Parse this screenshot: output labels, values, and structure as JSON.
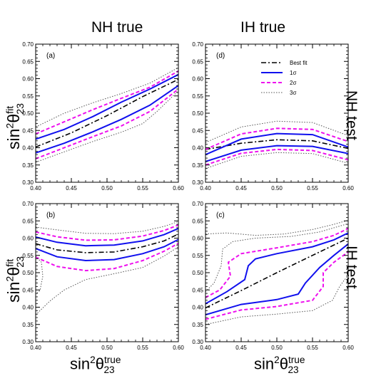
{
  "headers": {
    "col_left": "NH true",
    "col_right": "IH true",
    "row_top": "NH test",
    "row_bottom": "IH test"
  },
  "axis_text": {
    "y_main": "sin",
    "y_sup": "2",
    "y_theta": "θ",
    "y_sub": "23",
    "y_supfit": "fit",
    "x_main": "sin",
    "x_sup": "2",
    "x_theta": "θ",
    "x_sub": "23",
    "x_suptrue": "true"
  },
  "styles": {
    "best": {
      "color": "#000000",
      "dash": "7,3,2,3",
      "width": 1.6
    },
    "sigma1": {
      "color": "#1010ee",
      "dash": "",
      "width": 2.0
    },
    "sigma2": {
      "color": "#ee10ee",
      "dash": "5,3",
      "width": 2.0
    },
    "sigma3": {
      "color": "#555555",
      "dash": "1.5,2",
      "width": 1.0
    }
  },
  "chart_data": [
    {
      "type": "line",
      "label": "(a)",
      "xlim": [
        0.4,
        0.6
      ],
      "ylim": [
        0.3,
        0.7
      ],
      "xticks": [
        "0.40",
        "0.45",
        "0.50",
        "0.55",
        "0.60"
      ],
      "yticks": [
        "0.30",
        "0.35",
        "0.40",
        "0.45",
        "0.50",
        "0.55",
        "0.60",
        "0.65",
        "0.70"
      ],
      "series": [
        {
          "style": "best",
          "points": [
            [
              0.4,
              0.402
            ],
            [
              0.45,
              0.443
            ],
            [
              0.5,
              0.493
            ],
            [
              0.55,
              0.548
            ],
            [
              0.6,
              0.598
            ]
          ]
        },
        {
          "style": "sigma1",
          "points": [
            [
              0.4,
              0.425
            ],
            [
              0.44,
              0.453
            ],
            [
              0.48,
              0.49
            ],
            [
              0.52,
              0.532
            ],
            [
              0.56,
              0.57
            ],
            [
              0.6,
              0.612
            ]
          ]
        },
        {
          "style": "sigma1",
          "points": [
            [
              0.4,
              0.385
            ],
            [
              0.44,
              0.413
            ],
            [
              0.48,
              0.446
            ],
            [
              0.52,
              0.482
            ],
            [
              0.56,
              0.523
            ],
            [
              0.6,
              0.58
            ]
          ]
        },
        {
          "style": "sigma2",
          "points": [
            [
              0.4,
              0.44
            ],
            [
              0.44,
              0.475
            ],
            [
              0.48,
              0.51
            ],
            [
              0.52,
              0.543
            ],
            [
              0.56,
              0.575
            ],
            [
              0.6,
              0.622
            ]
          ]
        },
        {
          "style": "sigma2",
          "points": [
            [
              0.4,
              0.368
            ],
            [
              0.44,
              0.4
            ],
            [
              0.48,
              0.432
            ],
            [
              0.52,
              0.463
            ],
            [
              0.56,
              0.505
            ],
            [
              0.6,
              0.57
            ]
          ]
        },
        {
          "style": "sigma3",
          "points": [
            [
              0.4,
              0.46
            ],
            [
              0.44,
              0.5
            ],
            [
              0.48,
              0.53
            ],
            [
              0.52,
              0.557
            ],
            [
              0.56,
              0.587
            ],
            [
              0.6,
              0.632
            ]
          ]
        },
        {
          "style": "sigma3",
          "points": [
            [
              0.4,
              0.358
            ],
            [
              0.44,
              0.388
            ],
            [
              0.48,
              0.418
            ],
            [
              0.52,
              0.445
            ],
            [
              0.55,
              0.47
            ],
            [
              0.57,
              0.505
            ],
            [
              0.6,
              0.565
            ]
          ]
        }
      ]
    },
    {
      "type": "line",
      "label": "(d)",
      "xlim": [
        0.4,
        0.6
      ],
      "ylim": [
        0.3,
        0.7
      ],
      "xticks": [
        "0.40",
        "0.45",
        "0.50",
        "0.55",
        "0.60"
      ],
      "yticks": [
        "0.30",
        "0.35",
        "0.40",
        "0.45",
        "0.50",
        "0.55",
        "0.60",
        "0.65",
        "0.70"
      ],
      "legend": {
        "placement": "top-center",
        "entries": [
          {
            "style": "best",
            "label": "Best fit"
          },
          {
            "style": "sigma1",
            "label": "1σ"
          },
          {
            "style": "sigma2",
            "label": "2σ"
          },
          {
            "style": "sigma3",
            "label": "3σ"
          }
        ]
      },
      "series": [
        {
          "style": "best",
          "points": [
            [
              0.4,
              0.395
            ],
            [
              0.45,
              0.413
            ],
            [
              0.5,
              0.423
            ],
            [
              0.55,
              0.42
            ],
            [
              0.6,
              0.398
            ]
          ]
        },
        {
          "style": "sigma1",
          "points": [
            [
              0.4,
              0.38
            ],
            [
              0.45,
              0.425
            ],
            [
              0.5,
              0.441
            ],
            [
              0.55,
              0.438
            ],
            [
              0.6,
              0.402
            ]
          ]
        },
        {
          "style": "sigma1",
          "points": [
            [
              0.4,
              0.36
            ],
            [
              0.45,
              0.393
            ],
            [
              0.5,
              0.406
            ],
            [
              0.55,
              0.404
            ],
            [
              0.6,
              0.383
            ]
          ]
        },
        {
          "style": "sigma2",
          "points": [
            [
              0.4,
              0.395
            ],
            [
              0.45,
              0.44
            ],
            [
              0.5,
              0.456
            ],
            [
              0.55,
              0.453
            ],
            [
              0.6,
              0.418
            ]
          ]
        },
        {
          "style": "sigma2",
          "points": [
            [
              0.4,
              0.35
            ],
            [
              0.45,
              0.384
            ],
            [
              0.5,
              0.395
            ],
            [
              0.55,
              0.392
            ],
            [
              0.6,
              0.365
            ]
          ]
        },
        {
          "style": "sigma3",
          "points": [
            [
              0.4,
              0.415
            ],
            [
              0.45,
              0.46
            ],
            [
              0.5,
              0.477
            ],
            [
              0.55,
              0.473
            ],
            [
              0.6,
              0.435
            ]
          ]
        },
        {
          "style": "sigma3",
          "points": [
            [
              0.4,
              0.34
            ],
            [
              0.45,
              0.375
            ],
            [
              0.5,
              0.386
            ],
            [
              0.55,
              0.383
            ],
            [
              0.6,
              0.355
            ]
          ]
        }
      ]
    },
    {
      "type": "line",
      "label": "(b)",
      "xlim": [
        0.4,
        0.6
      ],
      "ylim": [
        0.3,
        0.7
      ],
      "xticks": [
        "0.40",
        "0.45",
        "0.50",
        "0.55",
        "0.60"
      ],
      "yticks": [
        "0.30",
        "0.35",
        "0.40",
        "0.45",
        "0.50",
        "0.55",
        "0.60",
        "0.65",
        "0.70"
      ],
      "series": [
        {
          "style": "best",
          "points": [
            [
              0.4,
              0.584
            ],
            [
              0.43,
              0.566
            ],
            [
              0.47,
              0.558
            ],
            [
              0.51,
              0.56
            ],
            [
              0.55,
              0.575
            ],
            [
              0.58,
              0.592
            ],
            [
              0.6,
              0.612
            ]
          ]
        },
        {
          "style": "sigma1",
          "points": [
            [
              0.4,
              0.603
            ],
            [
              0.43,
              0.588
            ],
            [
              0.47,
              0.578
            ],
            [
              0.51,
              0.58
            ],
            [
              0.55,
              0.592
            ],
            [
              0.58,
              0.61
            ],
            [
              0.6,
              0.628
            ]
          ]
        },
        {
          "style": "sigma1",
          "points": [
            [
              0.4,
              0.57
            ],
            [
              0.43,
              0.546
            ],
            [
              0.47,
              0.535
            ],
            [
              0.51,
              0.538
            ],
            [
              0.55,
              0.555
            ],
            [
              0.58,
              0.575
            ],
            [
              0.6,
              0.596
            ]
          ]
        },
        {
          "style": "sigma2",
          "points": [
            [
              0.4,
              0.618
            ],
            [
              0.43,
              0.604
            ],
            [
              0.47,
              0.594
            ],
            [
              0.51,
              0.595
            ],
            [
              0.55,
              0.606
            ],
            [
              0.58,
              0.622
            ],
            [
              0.6,
              0.638
            ]
          ]
        },
        {
          "style": "sigma2",
          "points": [
            [
              0.4,
              0.545
            ],
            [
              0.43,
              0.518
            ],
            [
              0.47,
              0.506
            ],
            [
              0.51,
              0.512
            ],
            [
              0.55,
              0.535
            ],
            [
              0.58,
              0.562
            ],
            [
              0.6,
              0.585
            ]
          ]
        },
        {
          "style": "sigma3",
          "points": [
            [
              0.4,
              0.632
            ],
            [
              0.43,
              0.624
            ],
            [
              0.47,
              0.614
            ],
            [
              0.51,
              0.613
            ],
            [
              0.55,
              0.62
            ],
            [
              0.58,
              0.634
            ],
            [
              0.6,
              0.648
            ]
          ]
        },
        {
          "style": "sigma3",
          "points": [
            [
              0.4,
              0.378
            ],
            [
              0.42,
              0.418
            ],
            [
              0.44,
              0.45
            ],
            [
              0.47,
              0.48
            ],
            [
              0.51,
              0.497
            ],
            [
              0.55,
              0.515
            ],
            [
              0.58,
              0.548
            ],
            [
              0.6,
              0.575
            ]
          ]
        },
        {
          "style": "sigma3",
          "points": [
            [
              0.4,
              0.548
            ],
            [
              0.408,
              0.53
            ],
            [
              0.41,
              0.49
            ],
            [
              0.406,
              0.448
            ],
            [
              0.4,
              0.438
            ]
          ]
        }
      ]
    },
    {
      "type": "line",
      "label": "(c)",
      "xlim": [
        0.4,
        0.6
      ],
      "ylim": [
        0.3,
        0.7
      ],
      "xticks": [
        "0.40",
        "0.45",
        "0.50",
        "0.55",
        "0.60"
      ],
      "yticks": [
        "0.30",
        "0.35",
        "0.40",
        "0.45",
        "0.50",
        "0.55",
        "0.60",
        "0.65",
        "0.70"
      ],
      "series": [
        {
          "style": "best",
          "points": [
            [
              0.4,
              0.398
            ],
            [
              0.45,
              0.448
            ],
            [
              0.5,
              0.5
            ],
            [
              0.55,
              0.55
            ],
            [
              0.6,
              0.6
            ]
          ]
        },
        {
          "style": "sigma1",
          "points": [
            [
              0.4,
              0.41
            ],
            [
              0.43,
              0.445
            ],
            [
              0.455,
              0.48
            ],
            [
              0.46,
              0.52
            ],
            [
              0.47,
              0.54
            ],
            [
              0.5,
              0.555
            ],
            [
              0.55,
              0.575
            ],
            [
              0.58,
              0.595
            ],
            [
              0.6,
              0.615
            ]
          ]
        },
        {
          "style": "sigma1",
          "points": [
            [
              0.4,
              0.378
            ],
            [
              0.45,
              0.408
            ],
            [
              0.5,
              0.422
            ],
            [
              0.53,
              0.438
            ],
            [
              0.54,
              0.47
            ],
            [
              0.56,
              0.515
            ],
            [
              0.58,
              0.55
            ],
            [
              0.6,
              0.583
            ]
          ]
        },
        {
          "style": "sigma2",
          "points": [
            [
              0.4,
              0.428
            ],
            [
              0.42,
              0.45
            ],
            [
              0.435,
              0.49
            ],
            [
              0.432,
              0.53
            ],
            [
              0.45,
              0.555
            ],
            [
              0.5,
              0.572
            ],
            [
              0.55,
              0.59
            ],
            [
              0.58,
              0.608
            ],
            [
              0.6,
              0.628
            ]
          ]
        },
        {
          "style": "sigma2",
          "points": [
            [
              0.4,
              0.365
            ],
            [
              0.45,
              0.392
            ],
            [
              0.5,
              0.402
            ],
            [
              0.55,
              0.42
            ],
            [
              0.565,
              0.46
            ],
            [
              0.565,
              0.5
            ],
            [
              0.58,
              0.53
            ],
            [
              0.6,
              0.56
            ]
          ]
        },
        {
          "style": "sigma3",
          "points": [
            [
              0.4,
              0.612
            ],
            [
              0.43,
              0.615
            ],
            [
              0.47,
              0.608
            ],
            [
              0.51,
              0.612
            ],
            [
              0.55,
              0.625
            ],
            [
              0.58,
              0.64
            ],
            [
              0.6,
              0.652
            ]
          ]
        },
        {
          "style": "sigma3",
          "points": [
            [
              0.4,
              0.445
            ],
            [
              0.412,
              0.47
            ],
            [
              0.422,
              0.52
            ],
            [
              0.424,
              0.568
            ],
            [
              0.438,
              0.59
            ],
            [
              0.47,
              0.6
            ],
            [
              0.52,
              0.605
            ],
            [
              0.56,
              0.618
            ],
            [
              0.6,
              0.642
            ]
          ]
        },
        {
          "style": "sigma3",
          "points": [
            [
              0.4,
              0.35
            ],
            [
              0.45,
              0.372
            ],
            [
              0.5,
              0.38
            ],
            [
              0.55,
              0.39
            ],
            [
              0.578,
              0.42
            ],
            [
              0.588,
              0.46
            ],
            [
              0.595,
              0.48
            ],
            [
              0.6,
              0.49
            ]
          ]
        },
        {
          "style": "sigma3",
          "points": [
            [
              0.4,
              0.498
            ],
            [
              0.4,
              0.59
            ]
          ]
        }
      ]
    }
  ]
}
